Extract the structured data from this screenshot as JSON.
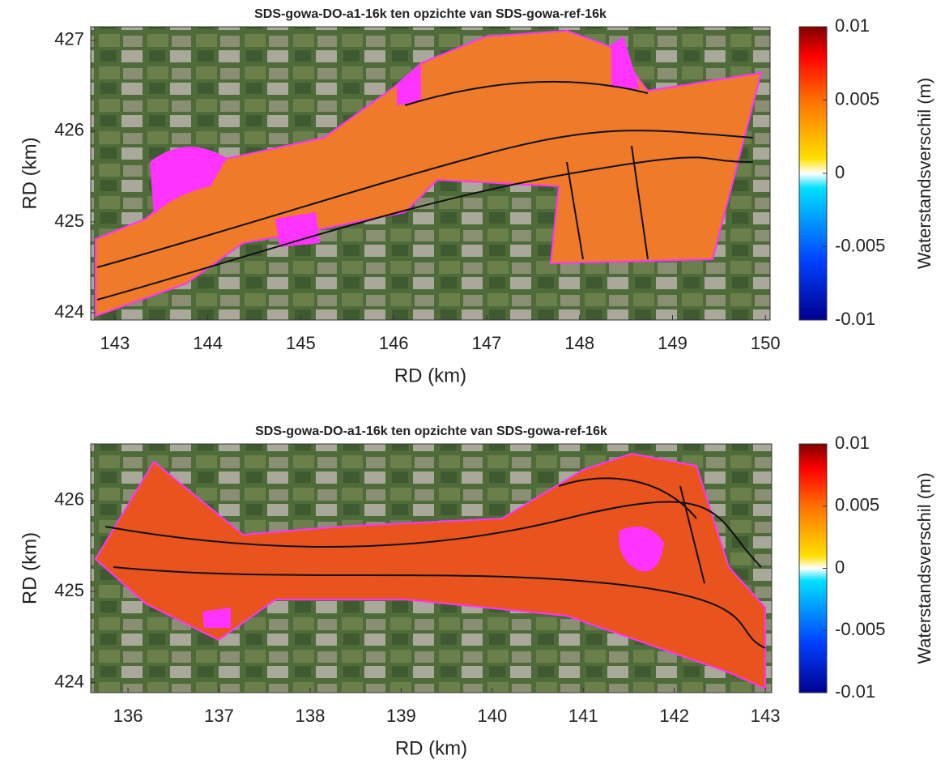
{
  "panels": [
    {
      "title": "SDS-gowa-DO-a1-16k ten opzichte van SDS-gowa-ref-16k",
      "xlabel": "RD (km)",
      "ylabel": "RD (km)",
      "xlim": [
        142.74,
        150.05
      ],
      "ylim": [
        423.92,
        427.15
      ],
      "xticks": [
        143,
        144,
        145,
        146,
        147,
        148,
        149,
        150
      ],
      "yticks": [
        424,
        425,
        426,
        427
      ],
      "colorbar": {
        "label": "Waterstandsverschil (m)",
        "lim": [
          -0.01,
          0.01
        ],
        "ticks": [
          0.01,
          0.005,
          0,
          -0.005,
          -0.01
        ]
      }
    },
    {
      "title": "SDS-gowa-DO-a1-16k ten opzichte van SDS-gowa-ref-16k",
      "xlabel": "RD (km)",
      "ylabel": "RD (km)",
      "xlim": [
        135.59,
        143.07
      ],
      "ylim": [
        423.89,
        426.62
      ],
      "xticks": [
        136,
        137,
        138,
        139,
        140,
        141,
        142,
        143
      ],
      "yticks": [
        424,
        425,
        426
      ],
      "colorbar": {
        "label": "Waterstandsverschil (m)",
        "lim": [
          -0.01,
          0.01
        ],
        "ticks": [
          0.01,
          0.005,
          0,
          -0.005,
          -0.01
        ]
      }
    }
  ]
}
